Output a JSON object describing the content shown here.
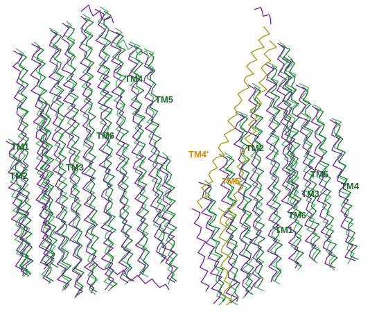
{
  "colors": {
    "background": "#ffffff",
    "trace_purple": "#7a2a9c",
    "trace_dark_green": "#1f7a3a",
    "trace_light_green": "#55b36b",
    "trace_olive": "#a6a62a",
    "label_green": "#1e6b2e",
    "label_orange": "#e08a00"
  },
  "left_structure": {
    "labels": {
      "tm1": "TM1",
      "tm2": "TM2",
      "tm3": "TM3",
      "tm4": "TM4",
      "tm5": "TM5",
      "tm6": "TM6"
    }
  },
  "right_structure": {
    "labels": {
      "tm1": "TM1",
      "tm2": "TM2",
      "tm3": "TM3",
      "tm4": "TM4",
      "tm5": "TM5",
      "tm6": "TM6",
      "tm4_prime": "TM4'",
      "tm5_prime": "TM5'"
    }
  }
}
